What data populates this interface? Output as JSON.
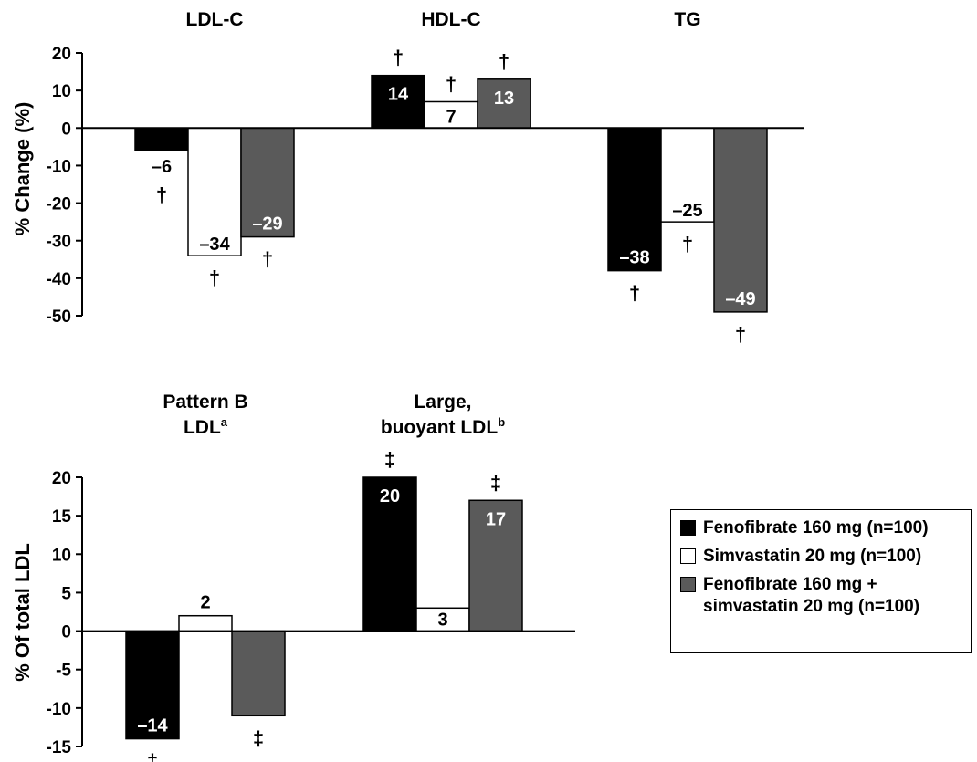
{
  "colors": {
    "fenofibrate": "#000000",
    "simvastatin": "#ffffff",
    "combination": "#5a5a5a",
    "axis": "#000000"
  },
  "legend": {
    "items": [
      {
        "label": "Fenofibrate 160 mg (n=100)",
        "color": "#000000"
      },
      {
        "label": "Simvastatin 20 mg (n=100)",
        "color": "#ffffff"
      },
      {
        "label": "Fenofibrate 160 mg +\nsimvastatin 20 mg (n=100)",
        "color": "#5a5a5a"
      }
    ]
  },
  "chart_data": [
    {
      "type": "bar",
      "ylabel": "% Change (%)",
      "ylim": [
        -50,
        20
      ],
      "yticks": [
        "20",
        "10",
        "0",
        "-10",
        "-20",
        "-30",
        "-40",
        "-50"
      ],
      "grid": false,
      "groups": [
        {
          "title": "LDL-C",
          "bars": [
            {
              "series": 0,
              "value": -6,
              "label": "–6",
              "mark": "†"
            },
            {
              "series": 1,
              "value": -34,
              "label": "–34",
              "mark": "†"
            },
            {
              "series": 2,
              "value": -29,
              "label": "–29",
              "mark": "†"
            }
          ]
        },
        {
          "title": "HDL-C",
          "bars": [
            {
              "series": 0,
              "value": 14,
              "label": "14",
              "mark": "†"
            },
            {
              "series": 1,
              "value": 7,
              "label": "7",
              "mark": "†"
            },
            {
              "series": 2,
              "value": 13,
              "label": "13",
              "mark": "†"
            }
          ]
        },
        {
          "title": "TG",
          "bars": [
            {
              "series": 0,
              "value": -38,
              "label": "–38",
              "mark": "†"
            },
            {
              "series": 1,
              "value": -25,
              "label": "–25",
              "mark": "†"
            },
            {
              "series": 2,
              "value": -49,
              "label": "–49",
              "mark": "†"
            }
          ]
        }
      ]
    },
    {
      "type": "bar",
      "ylabel": "% Of total LDL",
      "ylim": [
        -15,
        20
      ],
      "yticks": [
        "20",
        "15",
        "10",
        "5",
        "0",
        "-5",
        "-10",
        "-15"
      ],
      "grid": false,
      "groups": [
        {
          "title": "Pattern B",
          "title2": "LDL",
          "title_sup": "a",
          "bars": [
            {
              "series": 0,
              "value": -14,
              "label": "–14",
              "mark": "‡"
            },
            {
              "series": 1,
              "value": 2,
              "label": "2",
              "mark": ""
            },
            {
              "series": 2,
              "value": -11,
              "label": "",
              "mark": "‡"
            }
          ]
        },
        {
          "title": "Large,",
          "title2": "buoyant LDL",
          "title_sup": "b",
          "bars": [
            {
              "series": 0,
              "value": 20,
              "label": "20",
              "mark": "‡"
            },
            {
              "series": 1,
              "value": 3,
              "label": "3",
              "mark": ""
            },
            {
              "series": 2,
              "value": 17,
              "label": "17",
              "mark": "‡"
            }
          ]
        }
      ]
    }
  ]
}
